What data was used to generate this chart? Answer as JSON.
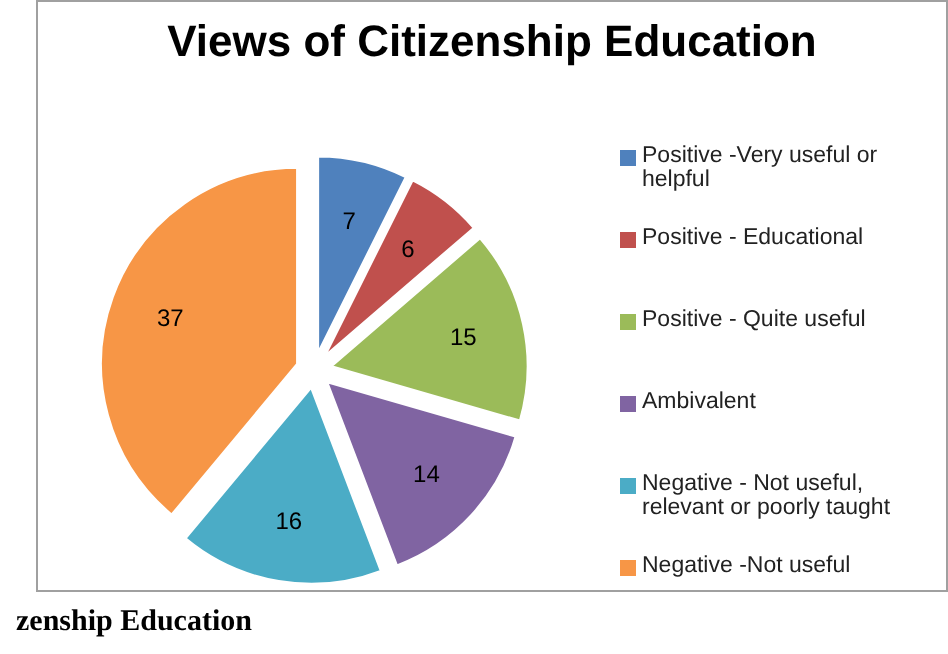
{
  "chart_data": {
    "type": "pie",
    "title": "Views of Citizenship Education",
    "categories": [
      "Positive -Very useful or helpful",
      "Positive - Educational",
      "Positive - Quite useful",
      "Ambivalent",
      "Negative - Not useful, relevant or poorly taught",
      "Negative -Not useful"
    ],
    "values": [
      7,
      6,
      15,
      14,
      16,
      37
    ],
    "colors": [
      "#4f81bd",
      "#c0504d",
      "#9bbb59",
      "#8064a2",
      "#4bacc6",
      "#f79646"
    ],
    "data_labels": true,
    "legend": "right",
    "annotations": [
      "zenship Education"
    ]
  }
}
